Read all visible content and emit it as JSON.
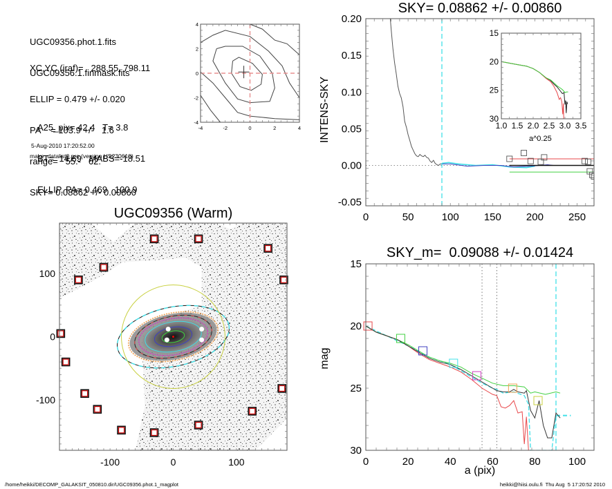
{
  "info": {
    "lines1": [
      "UGC09356.phot.1.fits",
      "UGC09356.1.finmask.fits"
    ],
    "lines2": [
      "XC,YC (iraf)=   288.55, 798.11",
      "ELLIP = 0.479 +/- 0.020",
      "PA    = 103.9 +/-   1.6",
      "range=   55.-   62.",
      "SKY= 0.08862 +/- 0.00860"
    ],
    "lines3": [
      "A25_pix= 42.4   T= 3.8",
      "BT=  14.69   MABS=-18.51",
      "ELLIP, PA= 0.469   100.9"
    ],
    "date": "5-Aug-2010 17:20:52.00",
    "program": "make_datalist0.pro (version HS230610)"
  },
  "footer": {
    "path": "/home/heikki/DECOMP_GALAKSIT_050810.dir/UGC09356.phot.1_magplot",
    "user": "heikki@hiisi.oulu.fi  Thu Aug  5 17:20:52 2010"
  },
  "colors": {
    "red": "#e8474a",
    "green": "#40d040",
    "blue": "#4040c0",
    "cyan": "#40e0e8",
    "magenta": "#d040c0",
    "orange": "#f0a050",
    "yellow": "#c8d040",
    "pinkdash": "#e89090"
  },
  "chart_data": [
    {
      "id": "contour",
      "type": "line",
      "title": "",
      "xlim": [
        -4,
        4
      ],
      "ylim": [
        -4,
        4
      ],
      "xticks": [
        -4,
        -2,
        0,
        2,
        4
      ],
      "yticks": [
        -4,
        -2,
        0,
        2,
        4
      ],
      "center": [
        -0.5,
        0.1
      ],
      "contours": [
        [
          [
            -1.4,
            1.0
          ],
          [
            -0.9,
            1.3
          ],
          [
            0.2,
            0.8
          ],
          [
            1.0,
            -0.1
          ],
          [
            0.9,
            -0.9
          ],
          [
            0.1,
            -1.4
          ],
          [
            -0.8,
            -1.1
          ],
          [
            -1.5,
            0.0
          ],
          [
            -1.4,
            1.0
          ]
        ],
        [
          [
            -2.7,
            2.0
          ],
          [
            -2.0,
            2.2
          ],
          [
            -0.6,
            2.2
          ],
          [
            0.8,
            1.4
          ],
          [
            1.8,
            0.0
          ],
          [
            2.0,
            -1.2
          ],
          [
            1.6,
            -2.3
          ],
          [
            0.0,
            -2.4
          ],
          [
            -1.0,
            -2.1
          ],
          [
            -2.0,
            -0.8
          ],
          [
            -3.0,
            1.0
          ],
          [
            -2.7,
            2.0
          ]
        ],
        [
          [
            -4,
            2.5
          ],
          [
            -3.0,
            3.1
          ],
          [
            -2.0,
            3.5
          ],
          [
            0.0,
            3.0
          ],
          [
            1.5,
            1.8
          ],
          [
            2.6,
            0.6
          ],
          [
            3.2,
            -0.8
          ],
          [
            4,
            -2.0
          ]
        ],
        [
          [
            -4,
            0.1
          ],
          [
            -3.0,
            -0.8
          ],
          [
            -2.0,
            -2.0
          ],
          [
            -1.0,
            -3.2
          ],
          [
            0.0,
            -3.5
          ],
          [
            2.0,
            -3.7
          ],
          [
            4,
            -3.8
          ]
        ],
        [
          [
            0,
            4
          ],
          [
            1.0,
            3.6
          ],
          [
            2.0,
            2.7
          ],
          [
            3.0,
            2.4
          ],
          [
            4,
            1.5
          ]
        ],
        [
          [
            -4,
            -1.8
          ],
          [
            -3.2,
            -3.0
          ],
          [
            -2.4,
            -4.0
          ]
        ]
      ]
    },
    {
      "id": "sky",
      "type": "line",
      "title": "SKY= 0.08862 +/- 0.00860",
      "xlabel": "",
      "ylabel": "INTENS-SKY",
      "xlim": [
        0,
        270
      ],
      "ylim": [
        -0.055,
        0.2
      ],
      "xticks": [
        0,
        50,
        100,
        150,
        200,
        250
      ],
      "yticks": [
        "0.20",
        "0.15",
        "0.10",
        "0.05",
        "0.00",
        "-0.05"
      ],
      "ytick_values": [
        0.2,
        0.15,
        0.1,
        0.05,
        0.0,
        -0.05
      ],
      "vline_x": 90,
      "profile_x": [
        29,
        30,
        32,
        34,
        36,
        38,
        40,
        42,
        44,
        46,
        48,
        50,
        52,
        54,
        56,
        58,
        60,
        62,
        64,
        66,
        68,
        70,
        72,
        74,
        76,
        78,
        80,
        82,
        84,
        86,
        88,
        90
      ],
      "profile_y": [
        0.2,
        0.185,
        0.16,
        0.14,
        0.125,
        0.108,
        0.098,
        0.092,
        0.08,
        0.06,
        0.052,
        0.042,
        0.034,
        0.026,
        0.021,
        0.016,
        0.013,
        0.012,
        0.015,
        0.013,
        0.012,
        0.014,
        0.011,
        0.01,
        0.006,
        0.004,
        0.007,
        0.003,
        0.001,
        0.0,
        0.002,
        0.002
      ],
      "blue_x": [
        90,
        100,
        120,
        140,
        160,
        175,
        195,
        215,
        222
      ],
      "blue_y": [
        0.002,
        0.002,
        -0.001,
        0.0,
        0.0,
        -0.002,
        -0.001,
        0.001,
        0.0
      ],
      "cyan_x": [
        90,
        98,
        110,
        130,
        150,
        170,
        190,
        200
      ],
      "cyan_y": [
        0.003,
        0.004,
        0.002,
        0.0,
        0.001,
        -0.002,
        -0.003,
        -0.001
      ],
      "fit_black": {
        "x": [
          170,
          270
        ],
        "y": [
          0.0,
          0.0
        ]
      },
      "fit_red": {
        "x": [
          170,
          270
        ],
        "y": [
          0.009,
          0.009
        ]
      },
      "fit_green": {
        "x": [
          170,
          270
        ],
        "y": [
          -0.009,
          -0.009
        ]
      },
      "squares_x": [
        170,
        187,
        195,
        207,
        211,
        259,
        263,
        265,
        268,
        270
      ],
      "squares_y": [
        0.009,
        0.017,
        0.006,
        0.005,
        0.011,
        0.006,
        0.005,
        -0.008,
        -0.013,
        -0.015
      ],
      "inset": {
        "xlabel": "a^0.25",
        "xlim": [
          1.0,
          3.5
        ],
        "ylim": [
          15,
          30
        ],
        "xticks": [
          "1.0",
          "1.5",
          "2.0",
          "2.5",
          "3.0",
          "3.5"
        ],
        "xtick_values": [
          1.0,
          1.5,
          2.0,
          2.5,
          3.0,
          3.5
        ],
        "yticks": [
          15,
          20,
          25,
          30
        ],
        "black_x": [
          1.0,
          1.5,
          1.8,
          2.0,
          2.2,
          2.4,
          2.55,
          2.65,
          2.75,
          2.85,
          2.92,
          2.97,
          3.0,
          3.02,
          3.04,
          3.06,
          3.08
        ],
        "black_y": [
          20.0,
          20.5,
          20.8,
          21.2,
          21.9,
          22.8,
          23.3,
          23.9,
          24.4,
          25.1,
          25.6,
          25.4,
          27.5,
          26.8,
          29.0,
          27.0,
          27.4
        ],
        "red_x": [
          1.0,
          1.5,
          1.8,
          2.0,
          2.2,
          2.4,
          2.55,
          2.65,
          2.75,
          2.82,
          2.86,
          2.9,
          2.93,
          2.95,
          2.96
        ],
        "red_y": [
          20.0,
          20.5,
          20.8,
          21.2,
          21.9,
          22.9,
          23.5,
          24.3,
          25.4,
          26.6,
          26.3,
          27.0,
          29.2,
          27.3,
          30.0
        ],
        "green_x": [
          1.0,
          1.5,
          1.8,
          2.0,
          2.2,
          2.4,
          2.55,
          2.65,
          2.75,
          2.85,
          2.92,
          3.0,
          3.05,
          3.1
        ],
        "green_y": [
          20.0,
          20.5,
          20.8,
          21.2,
          21.9,
          22.8,
          23.2,
          23.7,
          24.2,
          24.6,
          24.9,
          25.4,
          25.3,
          25.3
        ]
      }
    },
    {
      "id": "galaxy-image",
      "type": "scatter",
      "title": "UGC09356 (Warm)",
      "xlim": [
        -180,
        180
      ],
      "ylim": [
        -180,
        180
      ],
      "xticks": [
        -100,
        0,
        100
      ],
      "yticks": [
        100,
        0,
        -100
      ],
      "sky_boxes_x": [
        -30,
        40,
        150,
        175,
        -110,
        -150,
        -178,
        -170,
        -140,
        -120,
        -82,
        -30,
        40,
        125,
        172
      ],
      "sky_boxes_y": [
        155,
        155,
        140,
        90,
        110,
        90,
        5,
        -40,
        -90,
        -115,
        -148,
        -152,
        -140,
        -118,
        -82
      ],
      "ellipses": [
        {
          "name": "green",
          "a": 18,
          "ellip": 0.5,
          "pa": 10
        },
        {
          "name": "blue",
          "a": 30,
          "ellip": 0.5,
          "pa": 10
        },
        {
          "name": "cyan",
          "a": 45,
          "ellip": 0.48,
          "pa": 10
        },
        {
          "name": "magenta",
          "a": 55,
          "ellip": 0.48,
          "pa": 10
        },
        {
          "name": "black-red",
          "a": 62,
          "ellip": 0.48,
          "pa": 12
        },
        {
          "name": "orange",
          "a": 72,
          "ellip": 0.48,
          "pa": 12
        },
        {
          "name": "black-cyan-dash",
          "a": 90,
          "ellip": 0.48,
          "pa": 12
        },
        {
          "name": "yellow",
          "a": 82,
          "ellip": 0.0,
          "pa": 0
        }
      ]
    },
    {
      "id": "mag",
      "type": "line",
      "title": "SKY_m=  0.09088 +/- 0.01424",
      "xlabel": "a (pix)",
      "ylabel": "mag",
      "xlim": [
        0,
        108
      ],
      "ylim": [
        15,
        30
      ],
      "xticks": [
        0,
        20,
        40,
        60,
        80,
        100
      ],
      "yticks": [
        15,
        20,
        25,
        30
      ],
      "vlines_dotted": [
        55,
        62
      ],
      "vline_dashed": 90,
      "black_x": [
        0,
        5,
        10,
        15,
        20,
        25,
        30,
        35,
        40,
        45,
        50,
        55,
        60,
        62,
        65,
        68,
        70,
        72,
        75,
        76,
        78,
        80,
        82,
        84,
        86,
        88,
        90,
        92
      ],
      "black_y": [
        20.0,
        20.5,
        20.8,
        21.1,
        21.6,
        22.1,
        22.6,
        22.9,
        23.1,
        23.5,
        24.0,
        24.5,
        25.0,
        25.2,
        25.3,
        25.3,
        25.1,
        25.3,
        25.4,
        25.2,
        26.8,
        27.4,
        26.0,
        28.0,
        29.0,
        29.0,
        27.0,
        27.4
      ],
      "red_x": [
        0,
        5,
        10,
        15,
        20,
        25,
        30,
        35,
        40,
        45,
        50,
        55,
        60,
        62,
        64,
        66,
        68,
        70,
        72,
        74,
        75,
        76,
        77
      ],
      "red_y": [
        20.0,
        20.5,
        20.8,
        21.1,
        21.6,
        22.2,
        22.7,
        23.0,
        23.3,
        23.7,
        24.3,
        25.0,
        25.5,
        25.6,
        26.5,
        26.6,
        26.4,
        26.0,
        27.0,
        26.9,
        29.5,
        27.3,
        30.0
      ],
      "green_x": [
        0,
        5,
        10,
        15,
        20,
        25,
        30,
        35,
        40,
        45,
        50,
        55,
        60,
        65,
        70,
        75,
        78,
        80,
        85,
        90,
        92
      ],
      "green_y": [
        20.0,
        20.5,
        20.8,
        21.1,
        21.5,
        22.0,
        22.5,
        22.8,
        23.0,
        23.3,
        23.8,
        24.2,
        24.6,
        24.8,
        24.8,
        24.9,
        25.4,
        25.3,
        25.5,
        25.3,
        25.4
      ],
      "cyan_x": [
        0,
        10,
        20,
        30,
        40,
        50,
        55,
        60,
        62,
        65,
        70,
        75,
        77,
        78,
        80,
        82,
        85,
        88,
        90
      ],
      "cyan_y": [
        20.0,
        20.8,
        21.6,
        22.5,
        23.1,
        24.1,
        24.6,
        25.0,
        25.1,
        25.4,
        25.3,
        25.6,
        26.3,
        30.0,
        30.0,
        30.0,
        30.0,
        30.0,
        27.2
      ],
      "cyan_tail_x": [
        90,
        97
      ],
      "cyan_tail_y": [
        27.2,
        27.2
      ],
      "squares": [
        {
          "x": 1,
          "y": 20.0,
          "color": "red"
        },
        {
          "x": 16.5,
          "y": 21.0,
          "color": "green"
        },
        {
          "x": 27,
          "y": 22.0,
          "color": "blue"
        },
        {
          "x": 41.5,
          "y": 23.0,
          "color": "cyan"
        },
        {
          "x": 52.5,
          "y": 24.0,
          "color": "magenta"
        },
        {
          "x": 69.5,
          "y": 25.0,
          "color": "orange"
        },
        {
          "x": 81.5,
          "y": 26.0,
          "color": "yellow"
        }
      ]
    }
  ]
}
